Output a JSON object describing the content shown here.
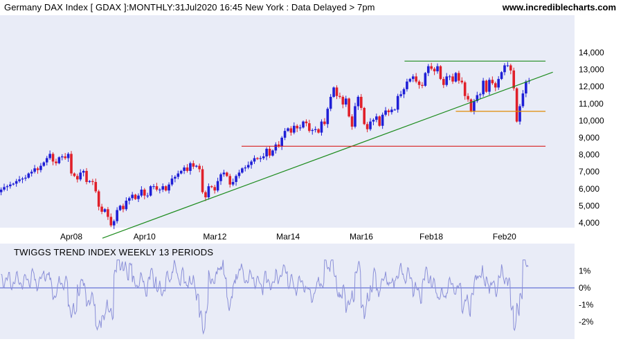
{
  "header": {
    "title": "Germany DAX Index [ GDAX ]:MONTHLY:31Jul2020 16:45 New York : Data Delayed > 7pm",
    "site": "www.incrediblecharts.com"
  },
  "chart_data": [
    {
      "type": "candlestick",
      "title": "Germany DAX Index [ GDAX ]:MONTHLY:31Jul2020 16:45 New York : Data Delayed > 7pm",
      "x_tick_labels": [
        "Apr08",
        "Apr10",
        "Mar12",
        "Mar14",
        "Mar16",
        "Feb18",
        "Feb20"
      ],
      "y_tick_labels": [
        "4,000",
        "5,000",
        "6,000",
        "7,000",
        "8,000",
        "9,000",
        "10,000",
        "11,000",
        "12,000",
        "13,000",
        "14,000"
      ],
      "ylim": [
        2300,
        15300
      ],
      "xlim": [
        2006.25,
        2022.2
      ],
      "colors": {
        "up": "#1f1fd6",
        "down": "#e0202a",
        "trendline": "#1e8c1e",
        "resistance": "#1e8c1e",
        "support_major": "#d91e1e",
        "support_minor": "#e08a00"
      },
      "lines": [
        {
          "name": "trendline",
          "x": [
            2009.1,
            2021.4
          ],
          "y": [
            3100,
            12850
          ]
        },
        {
          "name": "resistance",
          "x": [
            2017.35,
            2021.2
          ],
          "y": [
            13500,
            13500
          ]
        },
        {
          "name": "support-major",
          "x": [
            2012.9,
            2021.2
          ],
          "y": [
            8500,
            8500
          ]
        },
        {
          "name": "support-minor",
          "x": [
            2018.75,
            2021.2
          ],
          "y": [
            10550,
            10550
          ]
        }
      ],
      "closes_monthly_2006_2020": [
        5800,
        5950,
        6100,
        6150,
        6250,
        6300,
        6450,
        6550,
        6600,
        6650,
        6900,
        7000,
        7200,
        7100,
        7350,
        7550,
        7800,
        8050,
        7600,
        7500,
        7850,
        7900,
        7800,
        8050,
        6900,
        6750,
        6550,
        6950,
        7050,
        6400,
        6450,
        6400,
        5850,
        4950,
        4650,
        4800,
        4350,
        3850,
        4100,
        4750,
        5000,
        4800,
        5300,
        5450,
        5650,
        5400,
        5600,
        5950,
        5600,
        5600,
        6150,
        6150,
        5950,
        5950,
        6150,
        5900,
        6250,
        6600,
        6700,
        6900,
        7050,
        7250,
        7050,
        7500,
        7300,
        7350,
        7150,
        5800,
        5500,
        6150,
        6100,
        5900,
        6450,
        6850,
        6950,
        6750,
        6250,
        6400,
        6750,
        6950,
        7200,
        7250,
        7400,
        7600,
        7800,
        7750,
        7800,
        7900,
        8350,
        7950,
        8250,
        8600,
        8500,
        9000,
        9400,
        9550,
        9300,
        9700,
        9550,
        9600,
        9950,
        9850,
        9400,
        9450,
        9500,
        9300,
        9950,
        9800,
        10700,
        11400,
        11950,
        11450,
        11400,
        10950,
        11300,
        10250,
        9650,
        10850,
        11400,
        10750,
        9800,
        9500,
        9950,
        10050,
        10250,
        9700,
        10350,
        10600,
        10500,
        10650,
        10650,
        11450,
        11550,
        11850,
        12300,
        12450,
        12600,
        12300,
        12100,
        12050,
        12800,
        13200,
        13050,
        12900,
        13200,
        12450,
        12100,
        12600,
        12600,
        12300,
        12800,
        12350,
        12250,
        11450,
        11250,
        10550,
        11150,
        11500,
        11550,
        12350,
        11700,
        12400,
        12200,
        11950,
        12450,
        12850,
        13250,
        13250,
        12950,
        11900,
        9950,
        10850,
        11600,
        12300,
        12350
      ]
    },
    {
      "type": "line",
      "title": "TWIGGS TREND INDEX WEEKLY 13 PERIODS",
      "y_tick_labels": [
        "1%",
        "0%",
        "-1%",
        "-2%"
      ],
      "ylim": [
        -3.1,
        1.75
      ],
      "colors": {
        "line": "#8a8fd8",
        "zero": "#4455cc"
      }
    }
  ],
  "indicator": {
    "title": "TWIGGS TREND INDEX WEEKLY 13 PERIODS"
  }
}
